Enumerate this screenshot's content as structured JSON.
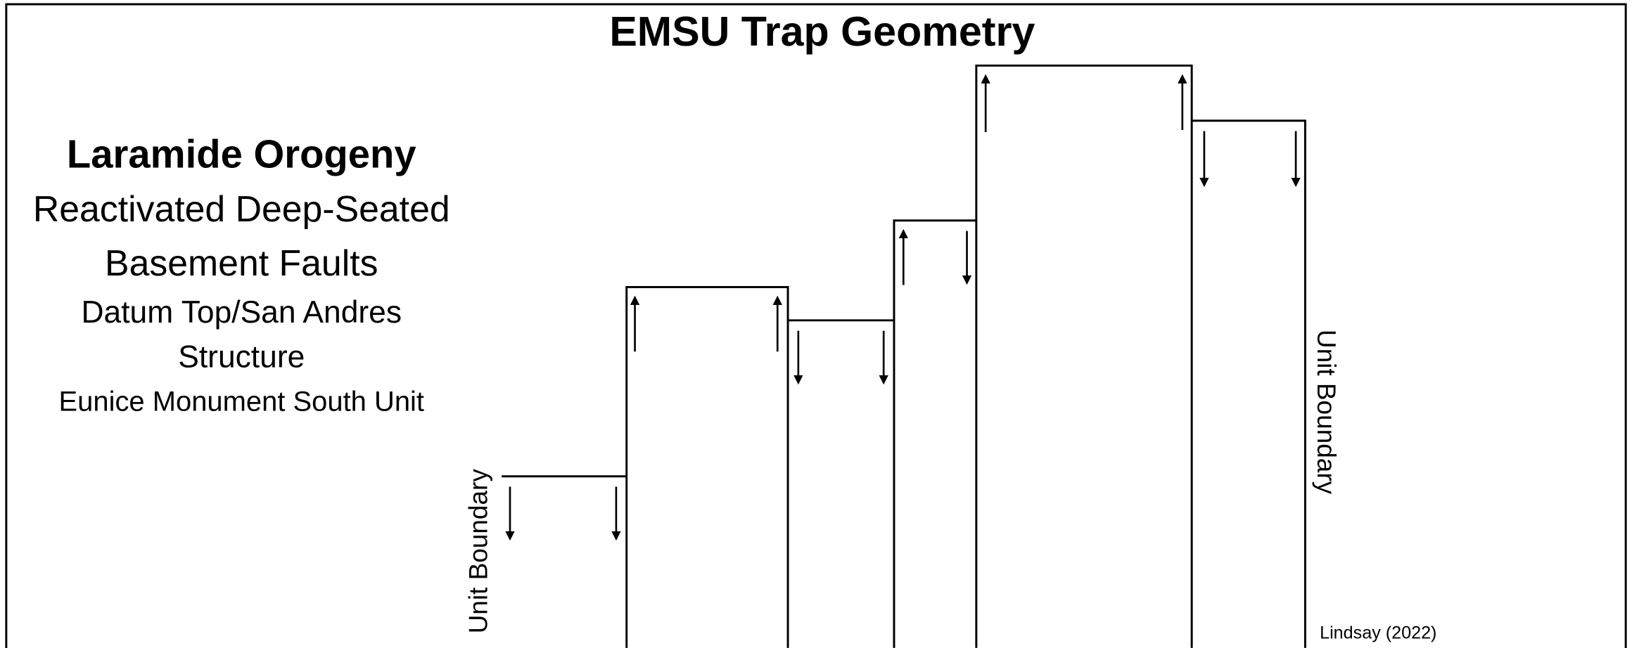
{
  "title": "EMSU Trap Geometry",
  "description": {
    "heading": "Laramide Orogeny",
    "lines": [
      "Reactivated Deep-Seated",
      "Basement Faults",
      "Datum Top/San Andres",
      "Structure",
      "Eunice Monument South Unit"
    ]
  },
  "boundary_labels": {
    "left": "Unit Boundary",
    "right": "Unit Boundary"
  },
  "credit": "Lindsay (2022)"
}
